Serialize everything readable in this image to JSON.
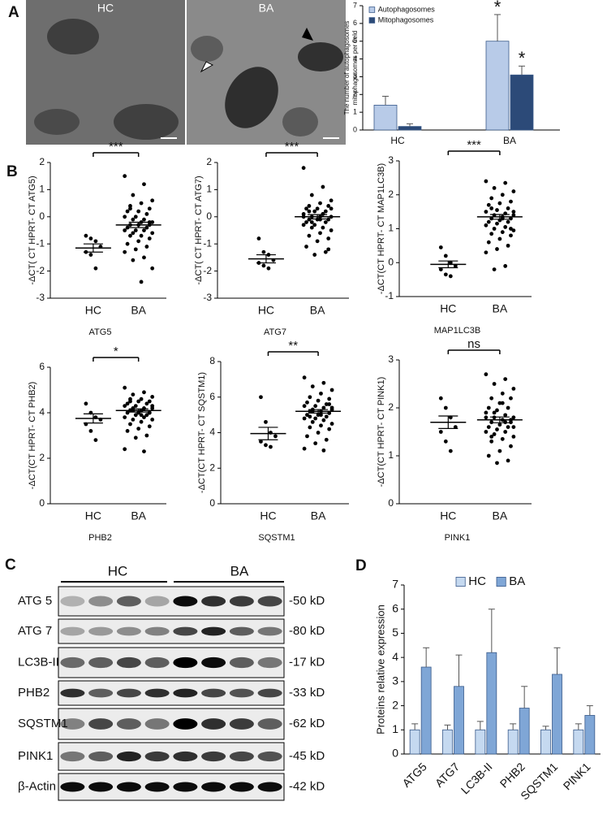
{
  "panel_labels": [
    "A",
    "B",
    "C",
    "D"
  ],
  "em_images": [
    "HC",
    "BA"
  ],
  "blot": {
    "groups": [
      "HC",
      "BA"
    ],
    "rows": [
      {
        "name": "ATG 5",
        "size": "-50 kD"
      },
      {
        "name": "ATG 7",
        "size": "-80 kD"
      },
      {
        "name": "LC3B-II",
        "size": "-17 kD"
      },
      {
        "name": "PHB2",
        "size": "-33 kD"
      },
      {
        "name": "SQSTM1",
        "size": "-62 kD"
      },
      {
        "name": "PINK1",
        "size": "-45 kD"
      },
      {
        "name": "β-Actin",
        "size": "-42 kD"
      }
    ]
  },
  "chart_data": [
    {
      "type": "bar",
      "ylabel": [
        "The number of autophagosomes",
        "mitophagosomes per field"
      ],
      "categories": [
        "HC",
        "BA"
      ],
      "series": [
        {
          "name": "Autophagosomes",
          "color": "#b8cbe8",
          "values": [
            1.4,
            5.0
          ],
          "errors": [
            0.5,
            1.5
          ],
          "marks": [
            null,
            "*"
          ]
        },
        {
          "name": "Mitophagosomes",
          "color": "#2c4a78",
          "values": [
            0.2,
            3.1
          ],
          "errors": [
            0.15,
            0.5
          ],
          "marks": [
            null,
            "*"
          ]
        }
      ],
      "ylim": [
        0,
        7
      ],
      "yticks": [
        0,
        1,
        2,
        3,
        4,
        5,
        6,
        7
      ],
      "legend": "top-left"
    },
    {
      "type": "scatter",
      "ylabel": "-ΔCT( CT HPRT- CT ATG5)",
      "xlabel": "ATG5",
      "significance": "***",
      "ylim": [
        -3,
        2
      ],
      "yticks": [
        -3,
        -2,
        -1,
        0,
        1,
        2
      ],
      "groups": [
        {
          "name": "HC",
          "mean": -1.15,
          "sem": 0.15,
          "values": [
            -0.7,
            -0.8,
            -0.9,
            -1.1,
            -1.3,
            -1.4,
            -1.9
          ]
        },
        {
          "name": "BA",
          "mean": -0.3,
          "sem": 0.1,
          "values": [
            1.5,
            1.2,
            0.8,
            0.6,
            0.5,
            0.4,
            0.3,
            0.2,
            0.2,
            0.1,
            0.0,
            0.0,
            -0.1,
            -0.1,
            -0.2,
            -0.2,
            -0.3,
            -0.3,
            -0.3,
            -0.4,
            -0.4,
            -0.5,
            -0.5,
            -0.5,
            -0.6,
            -0.6,
            -0.7,
            -0.7,
            -0.8,
            -0.9,
            -1.0,
            -1.1,
            -1.2,
            -1.3,
            -1.5,
            -1.6,
            -1.9,
            -2.4,
            0.3,
            -0.2
          ]
        }
      ]
    },
    {
      "type": "scatter",
      "ylabel": "-ΔCT( CT HPRT- CT ATG7)",
      "xlabel": "ATG7",
      "significance": "***",
      "ylim": [
        -3,
        2
      ],
      "yticks": [
        -3,
        -2,
        -1,
        0,
        1,
        2
      ],
      "groups": [
        {
          "name": "HC",
          "mean": -1.55,
          "sem": 0.15,
          "values": [
            -0.8,
            -1.3,
            -1.4,
            -1.6,
            -1.7,
            -1.8,
            -1.9
          ]
        },
        {
          "name": "BA",
          "mean": 0.0,
          "sem": 0.08,
          "values": [
            1.8,
            1.1,
            0.8,
            0.6,
            0.5,
            0.4,
            0.4,
            0.3,
            0.3,
            0.2,
            0.2,
            0.1,
            0.1,
            0.0,
            0.0,
            0.0,
            -0.1,
            -0.1,
            -0.1,
            -0.2,
            -0.2,
            -0.3,
            -0.3,
            -0.4,
            -0.4,
            -0.5,
            -0.6,
            -0.7,
            -0.8,
            -0.9,
            -1.1,
            -1.3,
            -1.4,
            0.0,
            0.1,
            -0.2,
            0.3,
            -0.1,
            0.2,
            -1.2
          ]
        }
      ]
    },
    {
      "type": "scatter",
      "ylabel": "-ΔCT(CT HPRT- CT MAP1LC3B)",
      "xlabel": "MAP1LC3B",
      "significance": "***",
      "ylim": [
        -1,
        3
      ],
      "yticks": [
        -1,
        0,
        1,
        2,
        3
      ],
      "groups": [
        {
          "name": "HC",
          "mean": -0.05,
          "sem": 0.1,
          "values": [
            0.45,
            0.2,
            0.0,
            -0.1,
            -0.2,
            -0.35,
            -0.4
          ]
        },
        {
          "name": "BA",
          "mean": 1.35,
          "sem": 0.07,
          "values": [
            2.4,
            2.35,
            2.2,
            2.1,
            2.0,
            1.9,
            1.8,
            1.75,
            1.7,
            1.6,
            1.55,
            1.5,
            1.45,
            1.4,
            1.4,
            1.35,
            1.3,
            1.3,
            1.25,
            1.2,
            1.2,
            1.15,
            1.1,
            1.05,
            1.0,
            0.95,
            0.9,
            0.85,
            0.8,
            0.7,
            0.6,
            0.5,
            0.4,
            0.3,
            -0.1,
            -0.2,
            1.5,
            1.3,
            1.6,
            1.0
          ]
        }
      ]
    },
    {
      "type": "scatter",
      "ylabel": "-ΔCT(CT HPRT- CT PHB2)",
      "xlabel": "PHB2",
      "significance": "*",
      "ylim": [
        0,
        6
      ],
      "yticks": [
        0,
        2,
        4,
        6
      ],
      "groups": [
        {
          "name": "HC",
          "mean": 3.75,
          "sem": 0.2,
          "values": [
            4.4,
            4.0,
            3.8,
            3.7,
            3.5,
            3.2,
            2.8
          ]
        },
        {
          "name": "BA",
          "mean": 4.1,
          "sem": 0.07,
          "values": [
            5.1,
            4.9,
            4.8,
            4.7,
            4.6,
            4.6,
            4.5,
            4.5,
            4.4,
            4.4,
            4.3,
            4.3,
            4.2,
            4.2,
            4.2,
            4.1,
            4.1,
            4.0,
            4.0,
            4.0,
            3.9,
            3.9,
            3.8,
            3.8,
            3.7,
            3.7,
            3.6,
            3.5,
            3.4,
            3.3,
            3.2,
            3.0,
            2.9,
            2.4,
            2.3,
            4.1,
            4.3,
            3.9,
            4.5,
            4.0
          ]
        }
      ]
    },
    {
      "type": "scatter",
      "ylabel": "-ΔCT(CT HPRT- CT SQSTM1)",
      "xlabel": "SQSTM1",
      "significance": "**",
      "ylim": [
        0,
        8
      ],
      "yticks": [
        0,
        2,
        4,
        6,
        8
      ],
      "groups": [
        {
          "name": "HC",
          "mean": 3.95,
          "sem": 0.35,
          "values": [
            6.0,
            4.6,
            4.0,
            3.8,
            3.5,
            3.3,
            3.2
          ]
        },
        {
          "name": "BA",
          "mean": 5.2,
          "sem": 0.1,
          "values": [
            7.1,
            6.8,
            6.6,
            6.4,
            6.2,
            6.0,
            5.9,
            5.8,
            5.7,
            5.6,
            5.5,
            5.5,
            5.4,
            5.3,
            5.3,
            5.2,
            5.2,
            5.1,
            5.0,
            5.0,
            4.9,
            4.8,
            4.8,
            4.7,
            4.6,
            4.5,
            4.4,
            4.3,
            4.2,
            4.0,
            3.8,
            3.6,
            3.4,
            3.1,
            3.0,
            5.2,
            5.4,
            5.0,
            4.9,
            5.6
          ]
        }
      ]
    },
    {
      "type": "scatter",
      "ylabel": "-ΔCT(CT HPRT- CT PINK1)",
      "xlabel": "PINK1",
      "significance": "ns",
      "ylim": [
        0,
        3
      ],
      "yticks": [
        0,
        1,
        2,
        3
      ],
      "groups": [
        {
          "name": "HC",
          "mean": 1.7,
          "sem": 0.13,
          "values": [
            2.2,
            2.0,
            1.8,
            1.6,
            1.5,
            1.3,
            1.1
          ]
        },
        {
          "name": "BA",
          "mean": 1.75,
          "sem": 0.06,
          "values": [
            2.7,
            2.6,
            2.5,
            2.4,
            2.3,
            2.2,
            2.2,
            2.1,
            2.0,
            2.0,
            1.95,
            1.9,
            1.85,
            1.8,
            1.8,
            1.75,
            1.7,
            1.7,
            1.65,
            1.6,
            1.6,
            1.55,
            1.5,
            1.5,
            1.45,
            1.4,
            1.35,
            1.3,
            1.2,
            1.1,
            1.0,
            0.9,
            0.85,
            1.8,
            1.7,
            1.9,
            1.6,
            2.1,
            1.4,
            1.75
          ]
        }
      ]
    },
    {
      "type": "bar",
      "ylabel": "Proteins relative  expression",
      "categories": [
        "ATG5",
        "ATG7",
        "LC3B-II",
        "PHB2",
        "SQSTM1",
        "PINK1"
      ],
      "series": [
        {
          "name": "HC",
          "color": "#c5d9f0",
          "values": [
            1,
            1,
            1,
            1,
            1,
            1
          ],
          "errors": [
            0.25,
            0.2,
            0.35,
            0.25,
            0.15,
            0.25
          ]
        },
        {
          "name": "BA",
          "color": "#7fa6d6",
          "values": [
            3.6,
            2.8,
            4.2,
            1.9,
            3.3,
            1.6
          ],
          "errors": [
            0.8,
            1.3,
            1.8,
            0.9,
            1.1,
            0.4
          ]
        }
      ],
      "ylim": [
        0,
        7
      ],
      "yticks": [
        0,
        1,
        2,
        3,
        4,
        5,
        6,
        7
      ],
      "legend": "top"
    }
  ]
}
